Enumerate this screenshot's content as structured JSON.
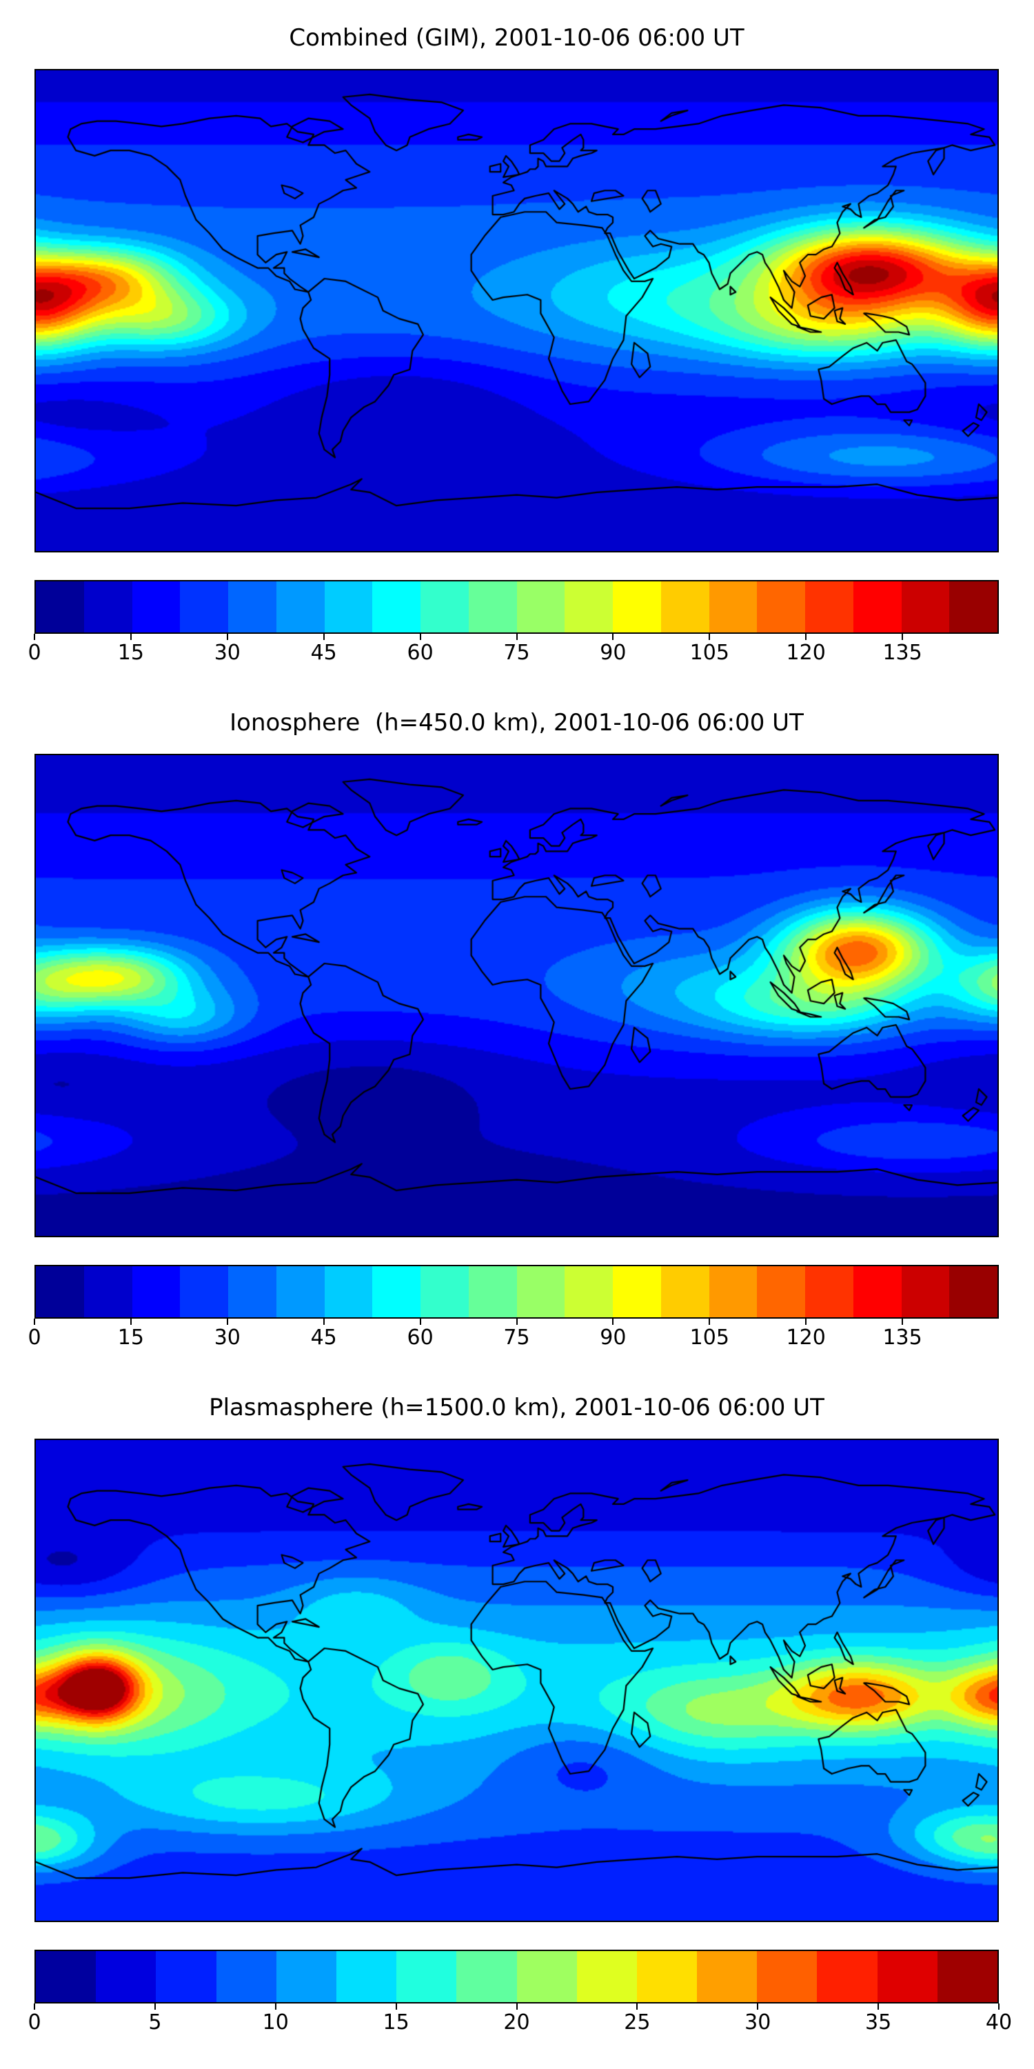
{
  "colors": {
    "background": "#ffffff",
    "coastline": "#000000",
    "frame": "#000000"
  },
  "chart_data": [
    {
      "type": "heatmap",
      "subtype": "filled_contour_world_map",
      "title": "Combined (GIM), 2001-10-06 06:00 UT",
      "projection": "equirectangular",
      "lon_range": [
        -180,
        180
      ],
      "lat_range": [
        -90,
        90
      ],
      "colormap": "jet",
      "vmin": 0,
      "vmax": 150,
      "nlevels": 20,
      "contour_interval": 7.5,
      "colorbar_ticks": [
        0,
        15,
        30,
        45,
        60,
        75,
        90,
        105,
        120,
        135
      ],
      "field": {
        "base": 8,
        "bands": [
          {
            "lat": 5,
            "amp": 26,
            "slat": 45
          },
          {
            "lat": 55,
            "amp": 10,
            "slat": 28
          }
        ],
        "blobs": [
          {
            "lon": 133,
            "lat": 15,
            "amp": 104,
            "slon": 38,
            "slat": 16
          },
          {
            "lon": 118,
            "lat": -6,
            "amp": 40,
            "slon": 42,
            "slat": 14
          },
          {
            "lon": 181,
            "lat": 2,
            "amp": 80,
            "slon": 22,
            "slat": 16
          },
          {
            "lon": -152,
            "lat": 12,
            "amp": 58,
            "slon": 26,
            "slat": 12
          },
          {
            "lon": -133,
            "lat": -3,
            "amp": 42,
            "slon": 28,
            "slat": 12
          },
          {
            "lon": 60,
            "lat": 5,
            "amp": 22,
            "slon": 55,
            "slat": 20
          },
          {
            "lon": -45,
            "lat": -32,
            "amp": -12,
            "slon": 50,
            "slat": 18
          },
          {
            "lon": 140,
            "lat": -55,
            "amp": 28,
            "slon": 70,
            "slat": 12
          },
          {
            "lon": -170,
            "lat": -40,
            "amp": -8,
            "slon": 40,
            "slat": 15
          }
        ]
      }
    },
    {
      "type": "heatmap",
      "subtype": "filled_contour_world_map",
      "title": "Ionosphere  (h=450.0 km), 2001-10-06 06:00 UT",
      "projection": "equirectangular",
      "lon_range": [
        -180,
        180
      ],
      "lat_range": [
        -90,
        90
      ],
      "colormap": "jet",
      "vmin": 0,
      "vmax": 150,
      "nlevels": 20,
      "contour_interval": 7.5,
      "colorbar_ticks": [
        0,
        15,
        30,
        45,
        60,
        75,
        90,
        105,
        120,
        135
      ],
      "field": {
        "base": 6,
        "bands": [
          {
            "lat": 8,
            "amp": 20,
            "slat": 42
          },
          {
            "lat": 55,
            "amp": 8,
            "slat": 28
          }
        ],
        "blobs": [
          {
            "lon": 128,
            "lat": 17,
            "amp": 88,
            "slon": 28,
            "slat": 15
          },
          {
            "lon": 112,
            "lat": -4,
            "amp": 32,
            "slon": 38,
            "slat": 13
          },
          {
            "lon": 182,
            "lat": 3,
            "amp": 34,
            "slon": 22,
            "slat": 14
          },
          {
            "lon": -150,
            "lat": 7,
            "amp": 58,
            "slon": 27,
            "slat": 11
          },
          {
            "lon": -125,
            "lat": -8,
            "amp": 26,
            "slon": 24,
            "slat": 11
          },
          {
            "lon": 70,
            "lat": 2,
            "amp": 16,
            "slon": 50,
            "slat": 18
          },
          {
            "lon": -55,
            "lat": -30,
            "amp": -9,
            "slon": 55,
            "slat": 18
          },
          {
            "lon": 150,
            "lat": -55,
            "amp": 20,
            "slon": 65,
            "slat": 12
          },
          {
            "lon": -172,
            "lat": -30,
            "amp": -7,
            "slon": 35,
            "slat": 14
          }
        ]
      }
    },
    {
      "type": "heatmap",
      "subtype": "filled_contour_world_map",
      "title": "Plasmasphere (h=1500.0 km), 2001-10-06 06:00 UT",
      "projection": "equirectangular",
      "lon_range": [
        -180,
        180
      ],
      "lat_range": [
        -90,
        90
      ],
      "colormap": "jet",
      "vmin": 0,
      "vmax": 40,
      "nlevels": 16,
      "contour_interval": 2.5,
      "colorbar_ticks": [
        0,
        5,
        10,
        15,
        20,
        25,
        30,
        35,
        40
      ],
      "field": {
        "base": 6,
        "bands": [
          {
            "lat": -5,
            "amp": 8,
            "slat": 40
          },
          {
            "lat": 70,
            "amp": -3,
            "slat": 20
          }
        ],
        "blobs": [
          {
            "lon": -157,
            "lat": -3,
            "amp": 25,
            "slon": 15,
            "slat": 12
          },
          {
            "lon": -150,
            "lat": -5,
            "amp": 8,
            "slon": 45,
            "slat": 22
          },
          {
            "lon": 128,
            "lat": -6,
            "amp": 17,
            "slon": 28,
            "slat": 13
          },
          {
            "lon": 178,
            "lat": -6,
            "amp": 12,
            "slon": 16,
            "slat": 11
          },
          {
            "lon": 75,
            "lat": -12,
            "amp": 7,
            "slon": 35,
            "slat": 15
          },
          {
            "lon": -25,
            "lat": 2,
            "amp": 6,
            "slon": 22,
            "slat": 13
          },
          {
            "lon": -95,
            "lat": -45,
            "amp": 7,
            "slon": 55,
            "slat": 13
          },
          {
            "lon": 170,
            "lat": -58,
            "amp": 8,
            "slon": 28,
            "slat": 11
          },
          {
            "lon": -178,
            "lat": -62,
            "amp": 6,
            "slon": 22,
            "slat": 10
          },
          {
            "lon": -170,
            "lat": 42,
            "amp": -5,
            "slon": 30,
            "slat": 13
          },
          {
            "lon": 25,
            "lat": -30,
            "amp": -4,
            "slon": 30,
            "slat": 14
          },
          {
            "lon": -60,
            "lat": 28,
            "amp": 4,
            "slon": 25,
            "slat": 12
          }
        ]
      }
    }
  ]
}
